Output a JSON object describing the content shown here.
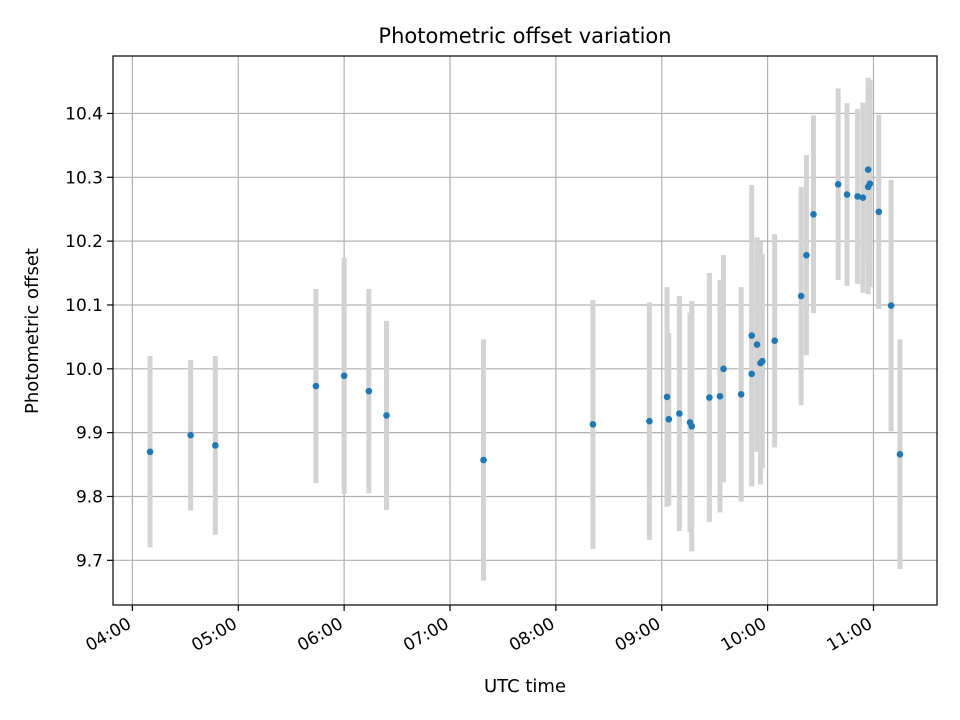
{
  "chart_data": {
    "type": "scatter",
    "title": "Photometric offset variation",
    "xlabel": "UTC time",
    "ylabel": "Photometric offset",
    "xlim": [
      "03:49",
      "11:36"
    ],
    "ylim": [
      9.63,
      10.49
    ],
    "x_ticks": [
      "04:00",
      "05:00",
      "06:00",
      "07:00",
      "08:00",
      "09:00",
      "10:00",
      "11:00"
    ],
    "y_ticks": [
      "9.7",
      "9.8",
      "9.9",
      "10.0",
      "10.1",
      "10.2",
      "10.3",
      "10.4"
    ],
    "grid": true,
    "point_color": "#1f77b4",
    "errorbar_color": "#d3d3d3",
    "points": [
      {
        "x": "04:10",
        "y": 9.87,
        "err": 0.15
      },
      {
        "x": "04:33",
        "y": 9.896,
        "err": 0.118
      },
      {
        "x": "04:47",
        "y": 9.88,
        "err": 0.14
      },
      {
        "x": "05:44",
        "y": 9.973,
        "err": 0.152
      },
      {
        "x": "06:00",
        "y": 9.989,
        "err": 0.185
      },
      {
        "x": "06:14",
        "y": 9.965,
        "err": 0.16
      },
      {
        "x": "06:24",
        "y": 9.927,
        "err": 0.148
      },
      {
        "x": "07:19",
        "y": 9.857,
        "err": 0.189
      },
      {
        "x": "08:21",
        "y": 9.913,
        "err": 0.195
      },
      {
        "x": "08:53",
        "y": 9.918,
        "err": 0.186
      },
      {
        "x": "09:03",
        "y": 9.956,
        "err": 0.172
      },
      {
        "x": "09:04",
        "y": 9.921,
        "err": 0.135
      },
      {
        "x": "09:10",
        "y": 9.93,
        "err": 0.184
      },
      {
        "x": "09:16",
        "y": 9.916,
        "err": 0.172
      },
      {
        "x": "09:17",
        "y": 9.91,
        "err": 0.196
      },
      {
        "x": "09:27",
        "y": 9.955,
        "err": 0.195
      },
      {
        "x": "09:33",
        "y": 9.957,
        "err": 0.182
      },
      {
        "x": "09:35",
        "y": 10.0,
        "err": 0.178
      },
      {
        "x": "09:45",
        "y": 9.96,
        "err": 0.168
      },
      {
        "x": "09:51",
        "y": 10.052,
        "err": 0.236
      },
      {
        "x": "09:51",
        "y": 9.992,
        "err": 0.176
      },
      {
        "x": "09:54",
        "y": 10.038,
        "err": 0.168
      },
      {
        "x": "09:56",
        "y": 10.009,
        "err": 0.19
      },
      {
        "x": "09:57",
        "y": 10.012,
        "err": 0.168
      },
      {
        "x": "10:04",
        "y": 10.044,
        "err": 0.167
      },
      {
        "x": "10:19",
        "y": 10.114,
        "err": 0.171
      },
      {
        "x": "10:22",
        "y": 10.178,
        "err": 0.157
      },
      {
        "x": "10:26",
        "y": 10.242,
        "err": 0.155
      },
      {
        "x": "10:40",
        "y": 10.289,
        "err": 0.15
      },
      {
        "x": "10:45",
        "y": 10.273,
        "err": 0.143
      },
      {
        "x": "10:51",
        "y": 10.27,
        "err": 0.137
      },
      {
        "x": "10:54",
        "y": 10.268,
        "err": 0.149
      },
      {
        "x": "10:57",
        "y": 10.312,
        "err": 0.144
      },
      {
        "x": "10:57",
        "y": 10.285,
        "err": 0.168
      },
      {
        "x": "10:58",
        "y": 10.29,
        "err": 0.162
      },
      {
        "x": "11:03",
        "y": 10.246,
        "err": 0.152
      },
      {
        "x": "11:10",
        "y": 10.099,
        "err": 0.197
      },
      {
        "x": "11:15",
        "y": 9.866,
        "err": 0.18
      }
    ]
  }
}
